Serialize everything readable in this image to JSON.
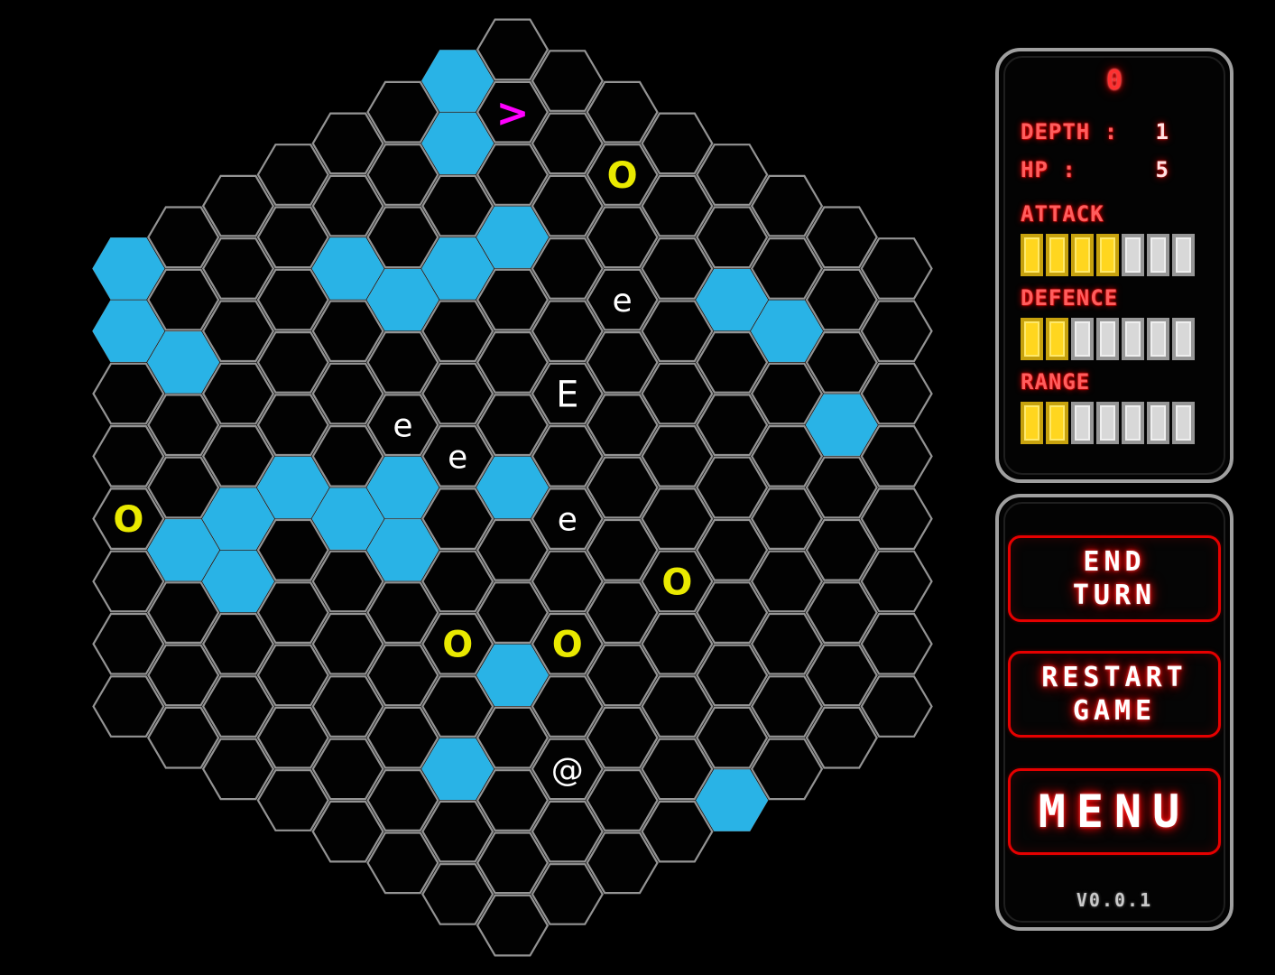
{
  "colors": {
    "background": "#000000",
    "grid_line": "#949494",
    "water": "#29b3e6",
    "stairs": "#ff00ff",
    "item": "#e9e900",
    "enemy": "#ffffff",
    "player": "#ffffff",
    "accent_red": "#ff0000",
    "bar_filled": "#ffd61f",
    "bar_filled_border": "#c7a20e",
    "bar_empty": "#d8d8d8",
    "bar_empty_border": "#979797",
    "panel_border": "#9f9f9f"
  },
  "board": {
    "radius": 7,
    "water_cells": [
      [
        -1,
        -6
      ],
      [
        -1,
        -5
      ],
      [
        -7,
        0
      ],
      [
        -7,
        1
      ],
      [
        -6,
        1
      ],
      [
        -3,
        -2
      ],
      [
        -2,
        -2
      ],
      [
        -1,
        -3
      ],
      [
        0,
        -4
      ],
      [
        4,
        -5
      ],
      [
        5,
        -5
      ],
      [
        6,
        -4
      ],
      [
        -6,
        4
      ],
      [
        -5,
        3
      ],
      [
        -5,
        4
      ],
      [
        -4,
        2
      ],
      [
        -3,
        2
      ],
      [
        -2,
        1
      ],
      [
        -2,
        2
      ],
      [
        0,
        0
      ],
      [
        0,
        3
      ],
      [
        -1,
        5
      ],
      [
        4,
        3
      ]
    ],
    "entities": [
      {
        "glyph": ">",
        "name": "stairs-down",
        "q": 0,
        "r": -6
      },
      {
        "glyph": "O",
        "name": "orb",
        "q": 2,
        "r": -6
      },
      {
        "glyph": "e",
        "name": "enemy-small",
        "q": 2,
        "r": -4
      },
      {
        "glyph": "E",
        "name": "enemy-big",
        "q": 1,
        "r": -2
      },
      {
        "glyph": "e",
        "name": "enemy-small",
        "q": -2,
        "r": 0
      },
      {
        "glyph": "e",
        "name": "enemy-small",
        "q": -1,
        "r": 0
      },
      {
        "glyph": "e",
        "name": "enemy-small",
        "q": 1,
        "r": 0
      },
      {
        "glyph": "O",
        "name": "orb",
        "q": -7,
        "r": 4
      },
      {
        "glyph": "O",
        "name": "orb",
        "q": 3,
        "r": 0
      },
      {
        "glyph": "O",
        "name": "orb",
        "q": -1,
        "r": 3
      },
      {
        "glyph": "O",
        "name": "orb",
        "q": 1,
        "r": 2
      },
      {
        "glyph": "@",
        "name": "player",
        "q": 1,
        "r": 4
      }
    ]
  },
  "sidebar": {
    "score": "0",
    "stats": [
      {
        "label": "DEPTH :",
        "value": "1"
      },
      {
        "label": "HP :",
        "value": "5"
      }
    ],
    "bars": [
      {
        "label": "ATTACK",
        "filled": 4,
        "total": 7
      },
      {
        "label": "DEFENCE",
        "filled": 2,
        "total": 7
      },
      {
        "label": "RANGE",
        "filled": 2,
        "total": 7
      }
    ],
    "buttons": [
      {
        "line1": "END",
        "line2": "TURN"
      },
      {
        "line1": "RESTART",
        "line2": "GAME"
      },
      {
        "line1": "MENU",
        "line2": ""
      }
    ],
    "version": "V0.0.1"
  }
}
